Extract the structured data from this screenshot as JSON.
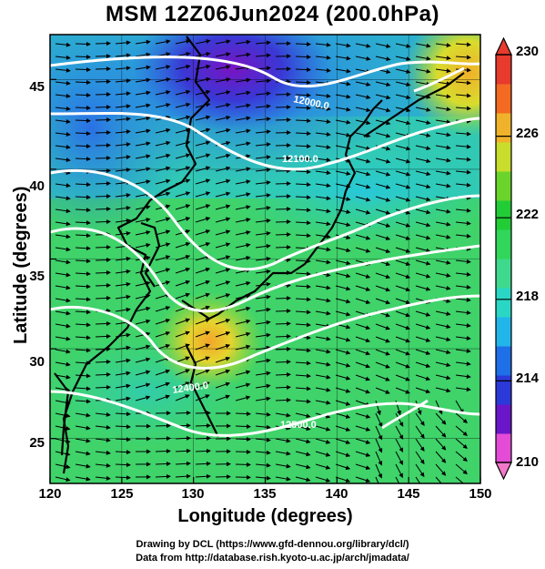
{
  "title": "MSM 12Z06Jun2024 (200.0hPa)",
  "axes": {
    "xlabel": "Longitude (degrees)",
    "ylabel": "Latitude  (degrees)",
    "x_ticks": [
      "120",
      "125",
      "130",
      "135",
      "140",
      "145",
      "150"
    ],
    "y_ticks": [
      "45",
      "40",
      "35",
      "30",
      "25"
    ],
    "xlim": [
      120,
      150
    ],
    "ylim": [
      22.5,
      47.5
    ]
  },
  "colorbar": {
    "ticks": [
      "230",
      "226",
      "222",
      "218",
      "214",
      "210"
    ],
    "range": [
      210,
      230
    ],
    "colors": [
      "#e44bd6",
      "#6a16c9",
      "#2b39d9",
      "#1e6fe8",
      "#21b6ea",
      "#29d7c4",
      "#3fd98d",
      "#31d65a",
      "#22cc36",
      "#6ad42b",
      "#c8dd2c",
      "#f0b22a",
      "#f36a23",
      "#e83a2d"
    ]
  },
  "contour_labels": [
    "12000.0",
    "12100.0",
    "12400.0",
    "12500.0"
  ],
  "credits": {
    "line1": "Drawing by DCL (https://www.gfd-dennou.org/library/dcl/)",
    "line2": "Data from http://database.rish.kyoto-u.ac.jp/arch/jmadata/"
  },
  "chart_data": {
    "type": "heatmap",
    "title": "MSM 12Z06Jun2024 (200.0hPa)",
    "xlabel": "Longitude (degrees)",
    "ylabel": "Latitude  (degrees)",
    "x_range": [
      120,
      150
    ],
    "y_range": [
      22.5,
      47.5
    ],
    "colorbar_range": [
      210,
      230
    ],
    "colorbar_ticks": [
      210,
      214,
      218,
      222,
      226,
      230
    ],
    "contour_levels_labeled": [
      12000,
      12100,
      12400,
      12500
    ],
    "grid": true
  }
}
